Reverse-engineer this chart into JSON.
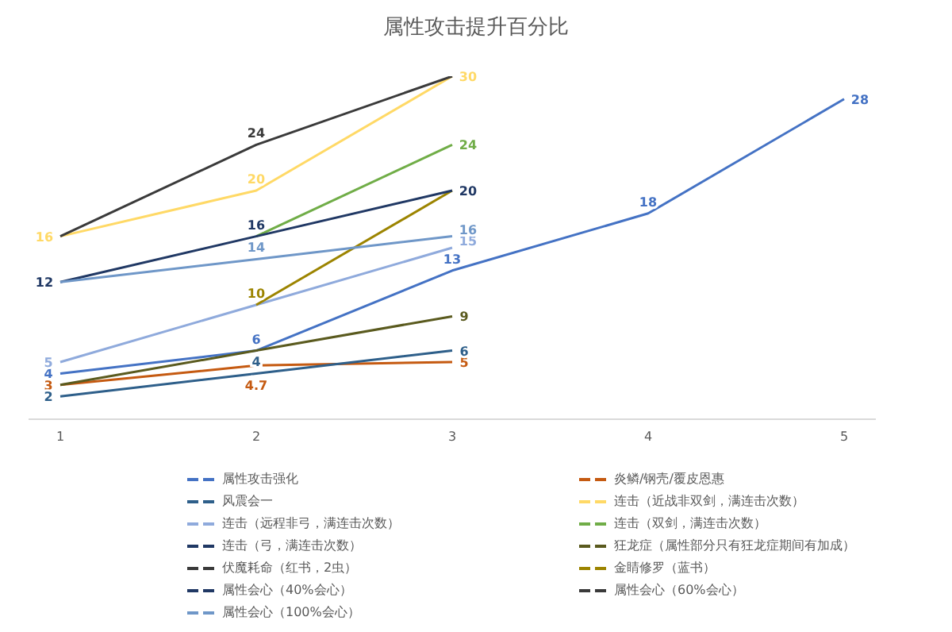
{
  "chart_data": {
    "type": "line",
    "title": "属性攻击提升百分比",
    "categories": [
      "1",
      "2",
      "3",
      "4",
      "5"
    ],
    "series": [
      {
        "name": "属性攻击强化",
        "color": "#4472c4",
        "values": [
          4,
          6,
          13,
          18,
          28
        ],
        "value_labels": [
          "4",
          "6",
          "13",
          "18",
          "28"
        ]
      },
      {
        "name": "炎鳞/钢壳/覆皮恩惠",
        "color": "#c55a11",
        "values": [
          3,
          4.7,
          5,
          null,
          null
        ],
        "value_labels": [
          "3",
          "4.7",
          "5",
          null,
          null
        ]
      },
      {
        "name": "风震会一",
        "color": "#2e5f8a",
        "values": [
          2,
          4,
          6,
          null,
          null
        ],
        "value_labels": [
          "2",
          "4",
          "6",
          null,
          null
        ]
      },
      {
        "name": "连击（近战非双剑，满连击次数）",
        "color": "#ffd966",
        "values": [
          16,
          20,
          30,
          null,
          null
        ],
        "value_labels": [
          "16",
          "20",
          "30",
          null,
          null
        ]
      },
      {
        "name": "连击（远程非弓，满连击次数）",
        "color": "#8faadc",
        "values": [
          5,
          10,
          15,
          null,
          null
        ],
        "value_labels": [
          "5",
          null,
          "15",
          null,
          null
        ]
      },
      {
        "name": "连击（双剑，满连击次数）",
        "color": "#70ad47",
        "values": [
          null,
          16,
          24,
          null,
          null
        ],
        "value_labels": [
          null,
          null,
          "24",
          null,
          null
        ]
      },
      {
        "name": "连击（弓，满连击次数）",
        "color": "#203864",
        "values": [
          null,
          null,
          null,
          null,
          null
        ]
      },
      {
        "name": "狂龙症（属性部分只有狂龙症期间有加成）",
        "color": "#5a5a1e",
        "values": [
          3,
          6,
          9,
          null,
          null
        ],
        "value_labels": [
          null,
          null,
          "9",
          null,
          null
        ]
      },
      {
        "name": "伏魔耗命（红书，2虫）",
        "color": "#3a3a3a",
        "values": [
          null,
          null,
          null,
          null,
          null
        ]
      },
      {
        "name": "金睛修罗（蓝书）",
        "color": "#9c8400",
        "values": [
          null,
          10,
          20,
          null,
          null
        ],
        "value_labels": [
          null,
          "10",
          null,
          null,
          null
        ]
      },
      {
        "name": "属性会心（40%会心）",
        "color": "#203864",
        "values": [
          12,
          16,
          20,
          null,
          null
        ],
        "value_labels": [
          "12",
          "16",
          "20",
          null,
          null
        ]
      },
      {
        "name": "属性会心（60%会心）",
        "color": "#3a3a3a",
        "values": [
          16,
          24,
          30,
          null,
          null
        ],
        "value_labels": [
          null,
          "24",
          null,
          null,
          null
        ]
      },
      {
        "name": "属性会心（100%会心）",
        "color": "#6f97c8",
        "values": [
          12,
          14,
          16,
          null,
          null
        ],
        "value_labels": [
          null,
          "14",
          "16",
          null,
          null
        ]
      }
    ],
    "legend": "bottom",
    "grid": false,
    "marker": "none",
    "line_style": "solid"
  }
}
